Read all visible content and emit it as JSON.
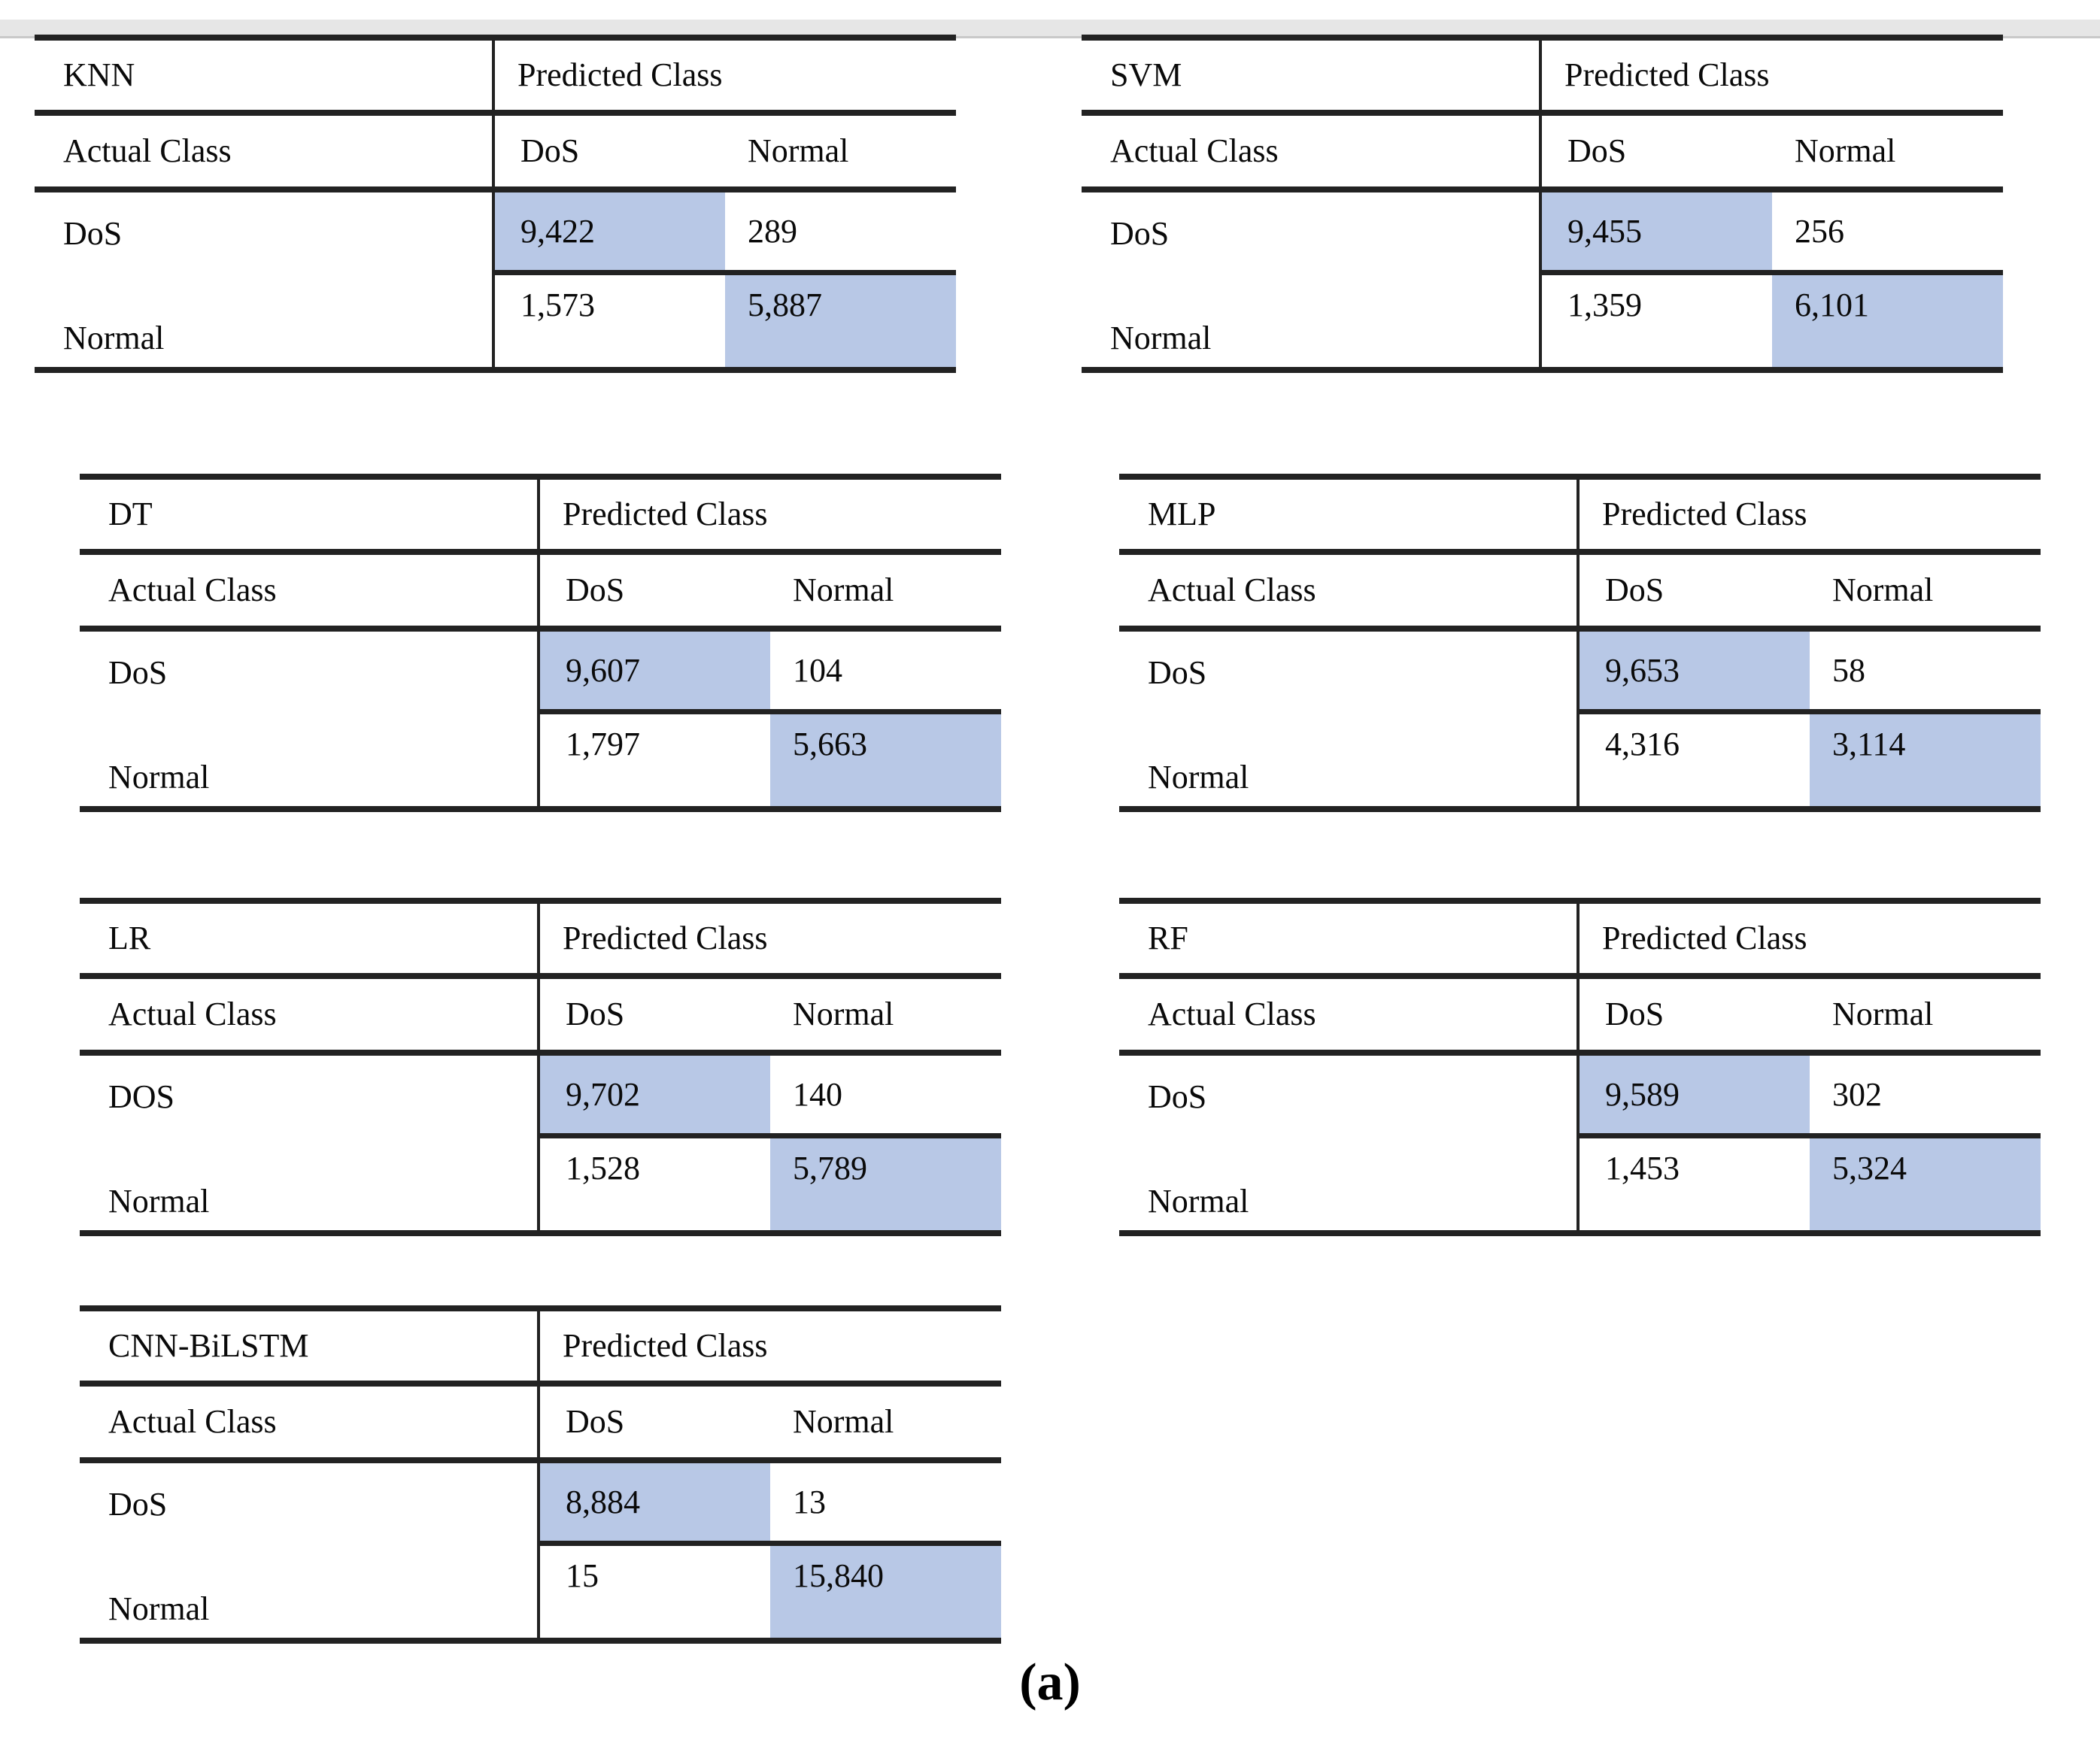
{
  "caption": "(a)",
  "labels": {
    "predicted": "Predicted Class",
    "actual": "Actual Class"
  },
  "highlight_color": "#b8c8e6",
  "tables": [
    {
      "model": "KNN",
      "col_headers": [
        "DoS",
        "Normal"
      ],
      "rows": [
        {
          "label": "DoS",
          "values": [
            "9,422",
            "289"
          ]
        },
        {
          "label": "Normal",
          "values": [
            "1,573",
            "5,887"
          ]
        }
      ]
    },
    {
      "model": "SVM",
      "col_headers": [
        "DoS",
        "Normal"
      ],
      "rows": [
        {
          "label": "DoS",
          "values": [
            "9,455",
            "256"
          ]
        },
        {
          "label": "Normal",
          "values": [
            "1,359",
            "6,101"
          ]
        }
      ]
    },
    {
      "model": "DT",
      "col_headers": [
        "DoS",
        "Normal"
      ],
      "rows": [
        {
          "label": "DoS",
          "values": [
            "9,607",
            "104"
          ]
        },
        {
          "label": "Normal",
          "values": [
            "1,797",
            "5,663"
          ]
        }
      ]
    },
    {
      "model": "MLP",
      "col_headers": [
        "DoS",
        "Normal"
      ],
      "rows": [
        {
          "label": "DoS",
          "values": [
            "9,653",
            "58"
          ]
        },
        {
          "label": "Normal",
          "values": [
            "4,316",
            "3,114"
          ]
        }
      ]
    },
    {
      "model": "LR",
      "col_headers": [
        "DoS",
        "Normal"
      ],
      "rows": [
        {
          "label": "DOS",
          "values": [
            "9,702",
            "140"
          ]
        },
        {
          "label": "Normal",
          "values": [
            "1,528",
            "5,789"
          ]
        }
      ]
    },
    {
      "model": "RF",
      "col_headers": [
        "DoS",
        "Normal"
      ],
      "rows": [
        {
          "label": "DoS",
          "values": [
            "9,589",
            "302"
          ]
        },
        {
          "label": "Normal",
          "values": [
            "1,453",
            "5,324"
          ]
        }
      ]
    },
    {
      "model": "CNN-BiLSTM",
      "col_headers": [
        "DoS",
        "Normal"
      ],
      "rows": [
        {
          "label": "DoS",
          "values": [
            "8,884",
            "13"
          ]
        },
        {
          "label": "Normal",
          "values": [
            "15",
            "15,840"
          ]
        }
      ]
    }
  ],
  "chart_data": [
    {
      "type": "table",
      "title": "KNN confusion matrix",
      "categories": [
        "DoS",
        "Normal"
      ],
      "series": [
        {
          "name": "DoS",
          "values": [
            9422,
            289
          ]
        },
        {
          "name": "Normal",
          "values": [
            1573,
            5887
          ]
        }
      ]
    },
    {
      "type": "table",
      "title": "SVM confusion matrix",
      "categories": [
        "DoS",
        "Normal"
      ],
      "series": [
        {
          "name": "DoS",
          "values": [
            9455,
            256
          ]
        },
        {
          "name": "Normal",
          "values": [
            1359,
            6101
          ]
        }
      ]
    },
    {
      "type": "table",
      "title": "DT confusion matrix",
      "categories": [
        "DoS",
        "Normal"
      ],
      "series": [
        {
          "name": "DoS",
          "values": [
            9607,
            104
          ]
        },
        {
          "name": "Normal",
          "values": [
            1797,
            5663
          ]
        }
      ]
    },
    {
      "type": "table",
      "title": "MLP confusion matrix",
      "categories": [
        "DoS",
        "Normal"
      ],
      "series": [
        {
          "name": "DoS",
          "values": [
            9653,
            58
          ]
        },
        {
          "name": "Normal",
          "values": [
            4316,
            3114
          ]
        }
      ]
    },
    {
      "type": "table",
      "title": "LR confusion matrix",
      "categories": [
        "DoS",
        "Normal"
      ],
      "series": [
        {
          "name": "DOS",
          "values": [
            9702,
            140
          ]
        },
        {
          "name": "Normal",
          "values": [
            1528,
            5789
          ]
        }
      ]
    },
    {
      "type": "table",
      "title": "RF confusion matrix",
      "categories": [
        "DoS",
        "Normal"
      ],
      "series": [
        {
          "name": "DoS",
          "values": [
            9589,
            302
          ]
        },
        {
          "name": "Normal",
          "values": [
            1453,
            5324
          ]
        }
      ]
    },
    {
      "type": "table",
      "title": "CNN-BiLSTM confusion matrix",
      "categories": [
        "DoS",
        "Normal"
      ],
      "series": [
        {
          "name": "DoS",
          "values": [
            8884,
            13
          ]
        },
        {
          "name": "Normal",
          "values": [
            15,
            15840
          ]
        }
      ]
    }
  ]
}
